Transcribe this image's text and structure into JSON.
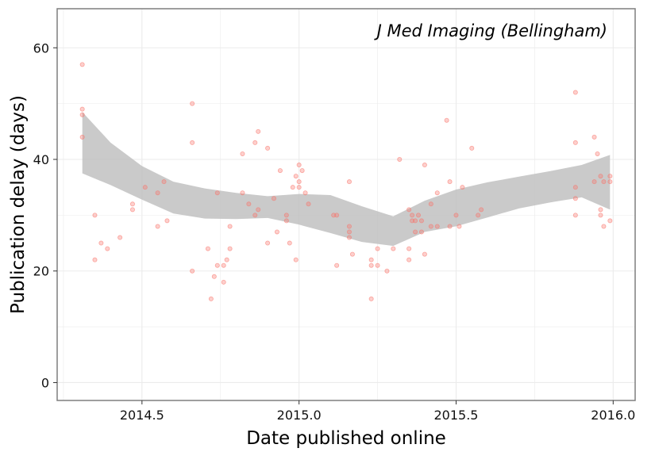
{
  "chart_data": {
    "type": "scatter",
    "title": "J Med Imaging (Bellingham)",
    "xlabel": "Date published online",
    "ylabel": "Publication delay (days)",
    "xlim": [
      2014.23,
      2016.07
    ],
    "ylim": [
      -3.2,
      67
    ],
    "xticks": [
      2014.5,
      2015.0,
      2015.5,
      2016.0
    ],
    "xtick_labels": [
      "2014.5",
      "2015.0",
      "2015.5",
      "2016.0"
    ],
    "yticks": [
      0,
      20,
      40,
      60
    ],
    "ytick_labels": [
      "0",
      "20",
      "40",
      "60"
    ],
    "grid": true,
    "legend": "none",
    "colors": {
      "points": "#f8766d",
      "ribbon": "#bdbdbd",
      "panel_border": "#7f7f7f",
      "grid": "#ebebeb"
    },
    "points": [
      {
        "x": 2014.31,
        "y": 57
      },
      {
        "x": 2014.31,
        "y": 49
      },
      {
        "x": 2014.31,
        "y": 48
      },
      {
        "x": 2014.31,
        "y": 44
      },
      {
        "x": 2014.35,
        "y": 30
      },
      {
        "x": 2014.35,
        "y": 22
      },
      {
        "x": 2014.37,
        "y": 25
      },
      {
        "x": 2014.39,
        "y": 24
      },
      {
        "x": 2014.43,
        "y": 26
      },
      {
        "x": 2014.47,
        "y": 32
      },
      {
        "x": 2014.47,
        "y": 31
      },
      {
        "x": 2014.51,
        "y": 35
      },
      {
        "x": 2014.55,
        "y": 34
      },
      {
        "x": 2014.55,
        "y": 28
      },
      {
        "x": 2014.57,
        "y": 36
      },
      {
        "x": 2014.58,
        "y": 29
      },
      {
        "x": 2014.66,
        "y": 50
      },
      {
        "x": 2014.66,
        "y": 43
      },
      {
        "x": 2014.66,
        "y": 20
      },
      {
        "x": 2014.71,
        "y": 24
      },
      {
        "x": 2014.72,
        "y": 15
      },
      {
        "x": 2014.73,
        "y": 19
      },
      {
        "x": 2014.74,
        "y": 34
      },
      {
        "x": 2014.74,
        "y": 21
      },
      {
        "x": 2014.76,
        "y": 21
      },
      {
        "x": 2014.76,
        "y": 18
      },
      {
        "x": 2014.77,
        "y": 22
      },
      {
        "x": 2014.78,
        "y": 28
      },
      {
        "x": 2014.78,
        "y": 24
      },
      {
        "x": 2014.82,
        "y": 41
      },
      {
        "x": 2014.82,
        "y": 34
      },
      {
        "x": 2014.84,
        "y": 32
      },
      {
        "x": 2014.86,
        "y": 43
      },
      {
        "x": 2014.86,
        "y": 30
      },
      {
        "x": 2014.87,
        "y": 45
      },
      {
        "x": 2014.87,
        "y": 31
      },
      {
        "x": 2014.9,
        "y": 42
      },
      {
        "x": 2014.9,
        "y": 25
      },
      {
        "x": 2014.92,
        "y": 33
      },
      {
        "x": 2014.93,
        "y": 27
      },
      {
        "x": 2014.94,
        "y": 38
      },
      {
        "x": 2014.96,
        "y": 30
      },
      {
        "x": 2014.96,
        "y": 29
      },
      {
        "x": 2014.97,
        "y": 25
      },
      {
        "x": 2014.98,
        "y": 35
      },
      {
        "x": 2014.99,
        "y": 37
      },
      {
        "x": 2014.99,
        "y": 22
      },
      {
        "x": 2015.0,
        "y": 39
      },
      {
        "x": 2015.0,
        "y": 36
      },
      {
        "x": 2015.0,
        "y": 35
      },
      {
        "x": 2015.01,
        "y": 38
      },
      {
        "x": 2015.02,
        "y": 34
      },
      {
        "x": 2015.03,
        "y": 32
      },
      {
        "x": 2015.11,
        "y": 30
      },
      {
        "x": 2015.12,
        "y": 30
      },
      {
        "x": 2015.12,
        "y": 21
      },
      {
        "x": 2015.16,
        "y": 36
      },
      {
        "x": 2015.16,
        "y": 28
      },
      {
        "x": 2015.16,
        "y": 27
      },
      {
        "x": 2015.16,
        "y": 26
      },
      {
        "x": 2015.17,
        "y": 23
      },
      {
        "x": 2015.23,
        "y": 22
      },
      {
        "x": 2015.23,
        "y": 21
      },
      {
        "x": 2015.23,
        "y": 15
      },
      {
        "x": 2015.25,
        "y": 24
      },
      {
        "x": 2015.25,
        "y": 21
      },
      {
        "x": 2015.28,
        "y": 20
      },
      {
        "x": 2015.3,
        "y": 24
      },
      {
        "x": 2015.32,
        "y": 40
      },
      {
        "x": 2015.35,
        "y": 31
      },
      {
        "x": 2015.35,
        "y": 24
      },
      {
        "x": 2015.35,
        "y": 22
      },
      {
        "x": 2015.36,
        "y": 30
      },
      {
        "x": 2015.36,
        "y": 29
      },
      {
        "x": 2015.37,
        "y": 29
      },
      {
        "x": 2015.37,
        "y": 27
      },
      {
        "x": 2015.38,
        "y": 30
      },
      {
        "x": 2015.39,
        "y": 29
      },
      {
        "x": 2015.39,
        "y": 27
      },
      {
        "x": 2015.4,
        "y": 39
      },
      {
        "x": 2015.4,
        "y": 23
      },
      {
        "x": 2015.42,
        "y": 32
      },
      {
        "x": 2015.42,
        "y": 28
      },
      {
        "x": 2015.44,
        "y": 34
      },
      {
        "x": 2015.44,
        "y": 28
      },
      {
        "x": 2015.47,
        "y": 47
      },
      {
        "x": 2015.48,
        "y": 36
      },
      {
        "x": 2015.48,
        "y": 28
      },
      {
        "x": 2015.5,
        "y": 30
      },
      {
        "x": 2015.51,
        "y": 28
      },
      {
        "x": 2015.52,
        "y": 35
      },
      {
        "x": 2015.55,
        "y": 42
      },
      {
        "x": 2015.57,
        "y": 30
      },
      {
        "x": 2015.58,
        "y": 31
      },
      {
        "x": 2015.88,
        "y": 52
      },
      {
        "x": 2015.88,
        "y": 43
      },
      {
        "x": 2015.88,
        "y": 35
      },
      {
        "x": 2015.88,
        "y": 33
      },
      {
        "x": 2015.88,
        "y": 30
      },
      {
        "x": 2015.94,
        "y": 44
      },
      {
        "x": 2015.94,
        "y": 36
      },
      {
        "x": 2015.95,
        "y": 41
      },
      {
        "x": 2015.96,
        "y": 37
      },
      {
        "x": 2015.96,
        "y": 31
      },
      {
        "x": 2015.96,
        "y": 30
      },
      {
        "x": 2015.97,
        "y": 28
      },
      {
        "x": 2015.97,
        "y": 36
      },
      {
        "x": 2015.99,
        "y": 37
      },
      {
        "x": 2015.99,
        "y": 36
      },
      {
        "x": 2015.99,
        "y": 29
      }
    ],
    "smooth_band": {
      "x": [
        2014.31,
        2014.4,
        2014.5,
        2014.6,
        2014.7,
        2014.8,
        2014.9,
        2015.0,
        2015.1,
        2015.2,
        2015.3,
        2015.4,
        2015.5,
        2015.6,
        2015.7,
        2015.8,
        2015.9,
        2015.99
      ],
      "upper": [
        48.5,
        43.0,
        38.8,
        36.0,
        34.8,
        34.0,
        33.4,
        33.8,
        33.6,
        31.6,
        29.8,
        32.6,
        34.6,
        35.9,
        36.9,
        37.9,
        39.0,
        40.8
      ],
      "lower": [
        37.5,
        35.4,
        32.8,
        30.3,
        29.4,
        29.3,
        29.5,
        28.3,
        26.8,
        25.2,
        24.5,
        27.0,
        28.0,
        29.6,
        31.2,
        32.3,
        33.2,
        31.0
      ]
    }
  }
}
